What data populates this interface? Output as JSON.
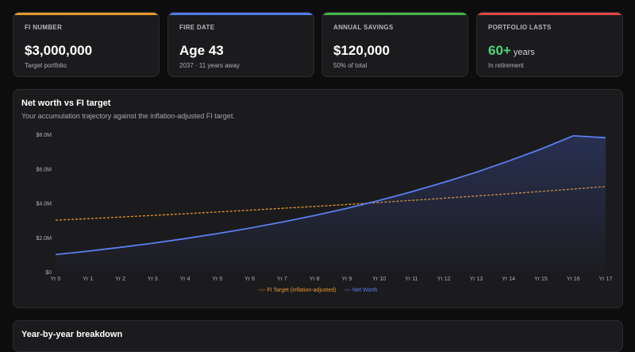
{
  "cards": [
    {
      "label": "FI NUMBER",
      "value": "$3,000,000",
      "suffix": "",
      "sub": "Target portfolio",
      "accent": "#e8972e",
      "value_color": "#ffffff"
    },
    {
      "label": "FIRE DATE",
      "value": "Age 43",
      "suffix": "",
      "sub": "2037 · 11 years away",
      "accent": "#4f7be8",
      "value_color": "#ffffff"
    },
    {
      "label": "ANNUAL SAVINGS",
      "value": "$120,000",
      "suffix": "",
      "sub": "50% of total",
      "accent": "#41b54a",
      "value_color": "#ffffff"
    },
    {
      "label": "PORTFOLIO LASTS",
      "value": "60+",
      "suffix": "years",
      "sub": "In retirement",
      "accent": "#e04848",
      "value_color": "#4fd37a"
    }
  ],
  "chart_panel": {
    "title": "Net worth vs FI target",
    "subtitle": "Your accumulation trajectory against the inflation-adjusted FI target."
  },
  "breakdown_panel": {
    "title": "Year-by-year breakdown"
  },
  "chart_data": {
    "type": "line",
    "categories": [
      "Yr 0",
      "Yr 1",
      "Yr 2",
      "Yr 3",
      "Yr 4",
      "Yr 5",
      "Yr 6",
      "Yr 7",
      "Yr 8",
      "Yr 9",
      "Yr 10",
      "Yr 11",
      "Yr 12",
      "Yr 13",
      "Yr 14",
      "Yr 15",
      "Yr 16",
      "Yr 17"
    ],
    "ylim": [
      0,
      8000000
    ],
    "yticks": [
      0,
      2000000,
      4000000,
      6000000,
      8000000
    ],
    "ytick_labels": [
      "$0",
      "$2.0M",
      "$4.0M",
      "$6.0M",
      "$8.0M"
    ],
    "grid": false,
    "legend": "bottom",
    "series": [
      {
        "name": "FI Target (inflation-adjusted)",
        "color": "#e8972e",
        "dashed": true,
        "values": [
          3000000,
          3090000,
          3183000,
          3278000,
          3377000,
          3478000,
          3582000,
          3690000,
          3800000,
          3914000,
          4032000,
          4153000,
          4277000,
          4406000,
          4538000,
          4674000,
          4814000,
          4958000
        ]
      },
      {
        "name": "Net Worth",
        "color": "#5b7ef0",
        "dashed": false,
        "fill": true,
        "values": [
          1000000,
          1200000,
          1420000,
          1660000,
          1930000,
          2220000,
          2540000,
          2890000,
          3270000,
          3690000,
          4150000,
          4650000,
          5200000,
          5790000,
          6440000,
          7140000,
          7910000,
          7800000
        ]
      }
    ]
  }
}
